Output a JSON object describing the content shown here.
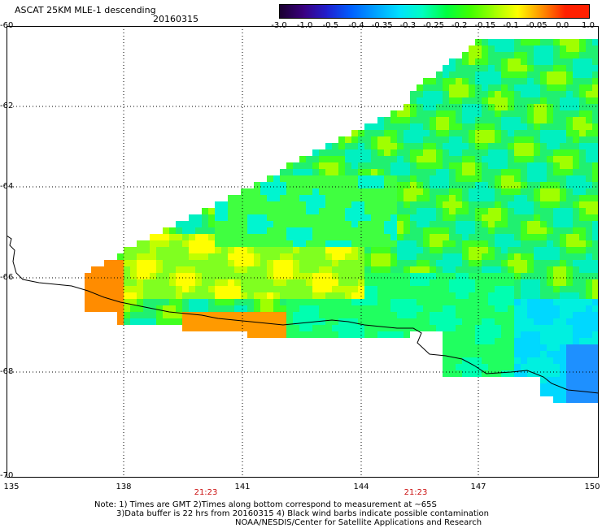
{
  "header": {
    "title": "ASCAT 25KM MLE-1 descending",
    "date": "20160315"
  },
  "colorbar": {
    "ticks": [
      "-3.0",
      "-1.0",
      "-0.5",
      "-0.4",
      "-0.35",
      "-0.3",
      "-0.25",
      "-0.2",
      "-0.15",
      "-0.1",
      "-0.05",
      "0.0",
      "1.0"
    ],
    "colors": [
      "#1a0030",
      "#3a0080",
      "#2020d0",
      "#0060ff",
      "#00a0ff",
      "#00e0ff",
      "#00ffc0",
      "#00ff40",
      "#40ff00",
      "#a0ff00",
      "#ffff00",
      "#ff9000",
      "#ff2000"
    ]
  },
  "axes": {
    "lat_labels": [
      "-60",
      "-62",
      "-64",
      "-66",
      "-68",
      "-70"
    ],
    "lon_labels": [
      "135",
      "138",
      "141",
      "144",
      "147",
      "150"
    ],
    "lat_range": [
      -70,
      -60
    ],
    "lon_range": [
      135,
      150
    ]
  },
  "times": [
    "21:23",
    "21:23"
  ],
  "notes": [
    "Note: 1) Times are GMT 2)Times along bottom correspond to measurement at ~65S",
    "3)Data buffer is 22 hrs from 20160315 4) Black wind barbs indicate possible contamination",
    "NOAA/NESDIS/Center for Satellite Applications and Research"
  ]
}
